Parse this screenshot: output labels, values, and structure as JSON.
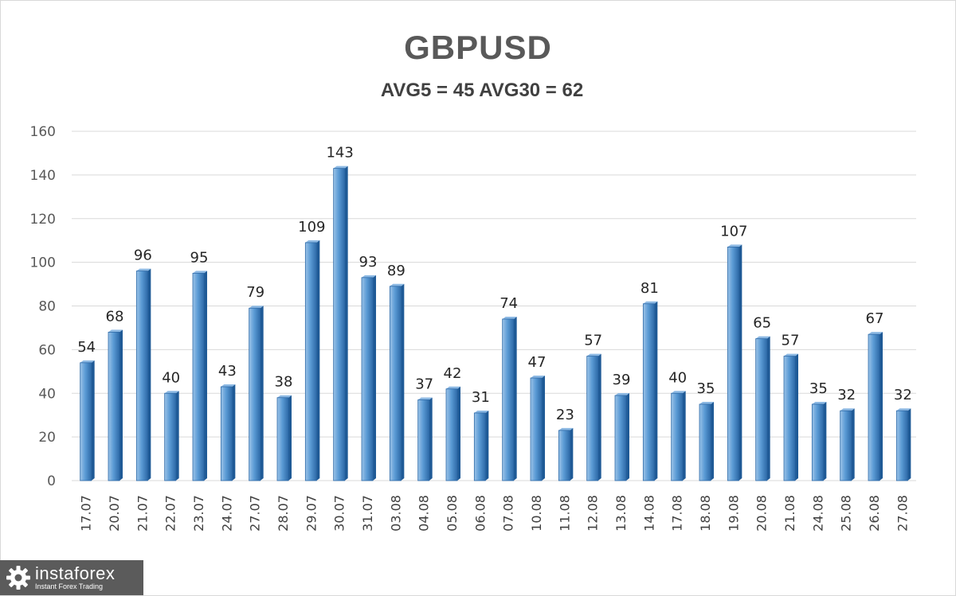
{
  "chart_data": {
    "type": "bar",
    "title": "GBPUSD",
    "subtitle": "AVG5 = 45 AVG30 = 62",
    "categories": [
      "17.07",
      "20.07",
      "21.07",
      "22.07",
      "23.07",
      "24.07",
      "27.07",
      "28.07",
      "29.07",
      "30.07",
      "31.07",
      "03.08",
      "04.08",
      "05.08",
      "06.08",
      "07.08",
      "10.08",
      "11.08",
      "12.08",
      "13.08",
      "14.08",
      "17.08",
      "18.08",
      "19.08",
      "20.08",
      "21.08",
      "24.08",
      "25.08",
      "26.08",
      "27.08"
    ],
    "values": [
      54,
      68,
      96,
      40,
      95,
      43,
      79,
      38,
      109,
      143,
      93,
      89,
      37,
      42,
      31,
      74,
      47,
      23,
      57,
      39,
      81,
      40,
      35,
      107,
      65,
      57,
      35,
      32,
      67,
      32
    ],
    "ylim": [
      0,
      160
    ],
    "yticks": [
      0,
      20,
      40,
      60,
      80,
      100,
      120,
      140,
      160
    ],
    "grid": true,
    "legend": "none",
    "colors": {
      "bar": "#5b9bd5",
      "bar_dark": "#2e6aa8",
      "bar_light": "#9cc3e8",
      "grid": "#d9d9d9"
    }
  },
  "watermark": {
    "brand": "instaforex",
    "tagline": "Instant Forex Trading",
    "icon": "gear-icon"
  }
}
